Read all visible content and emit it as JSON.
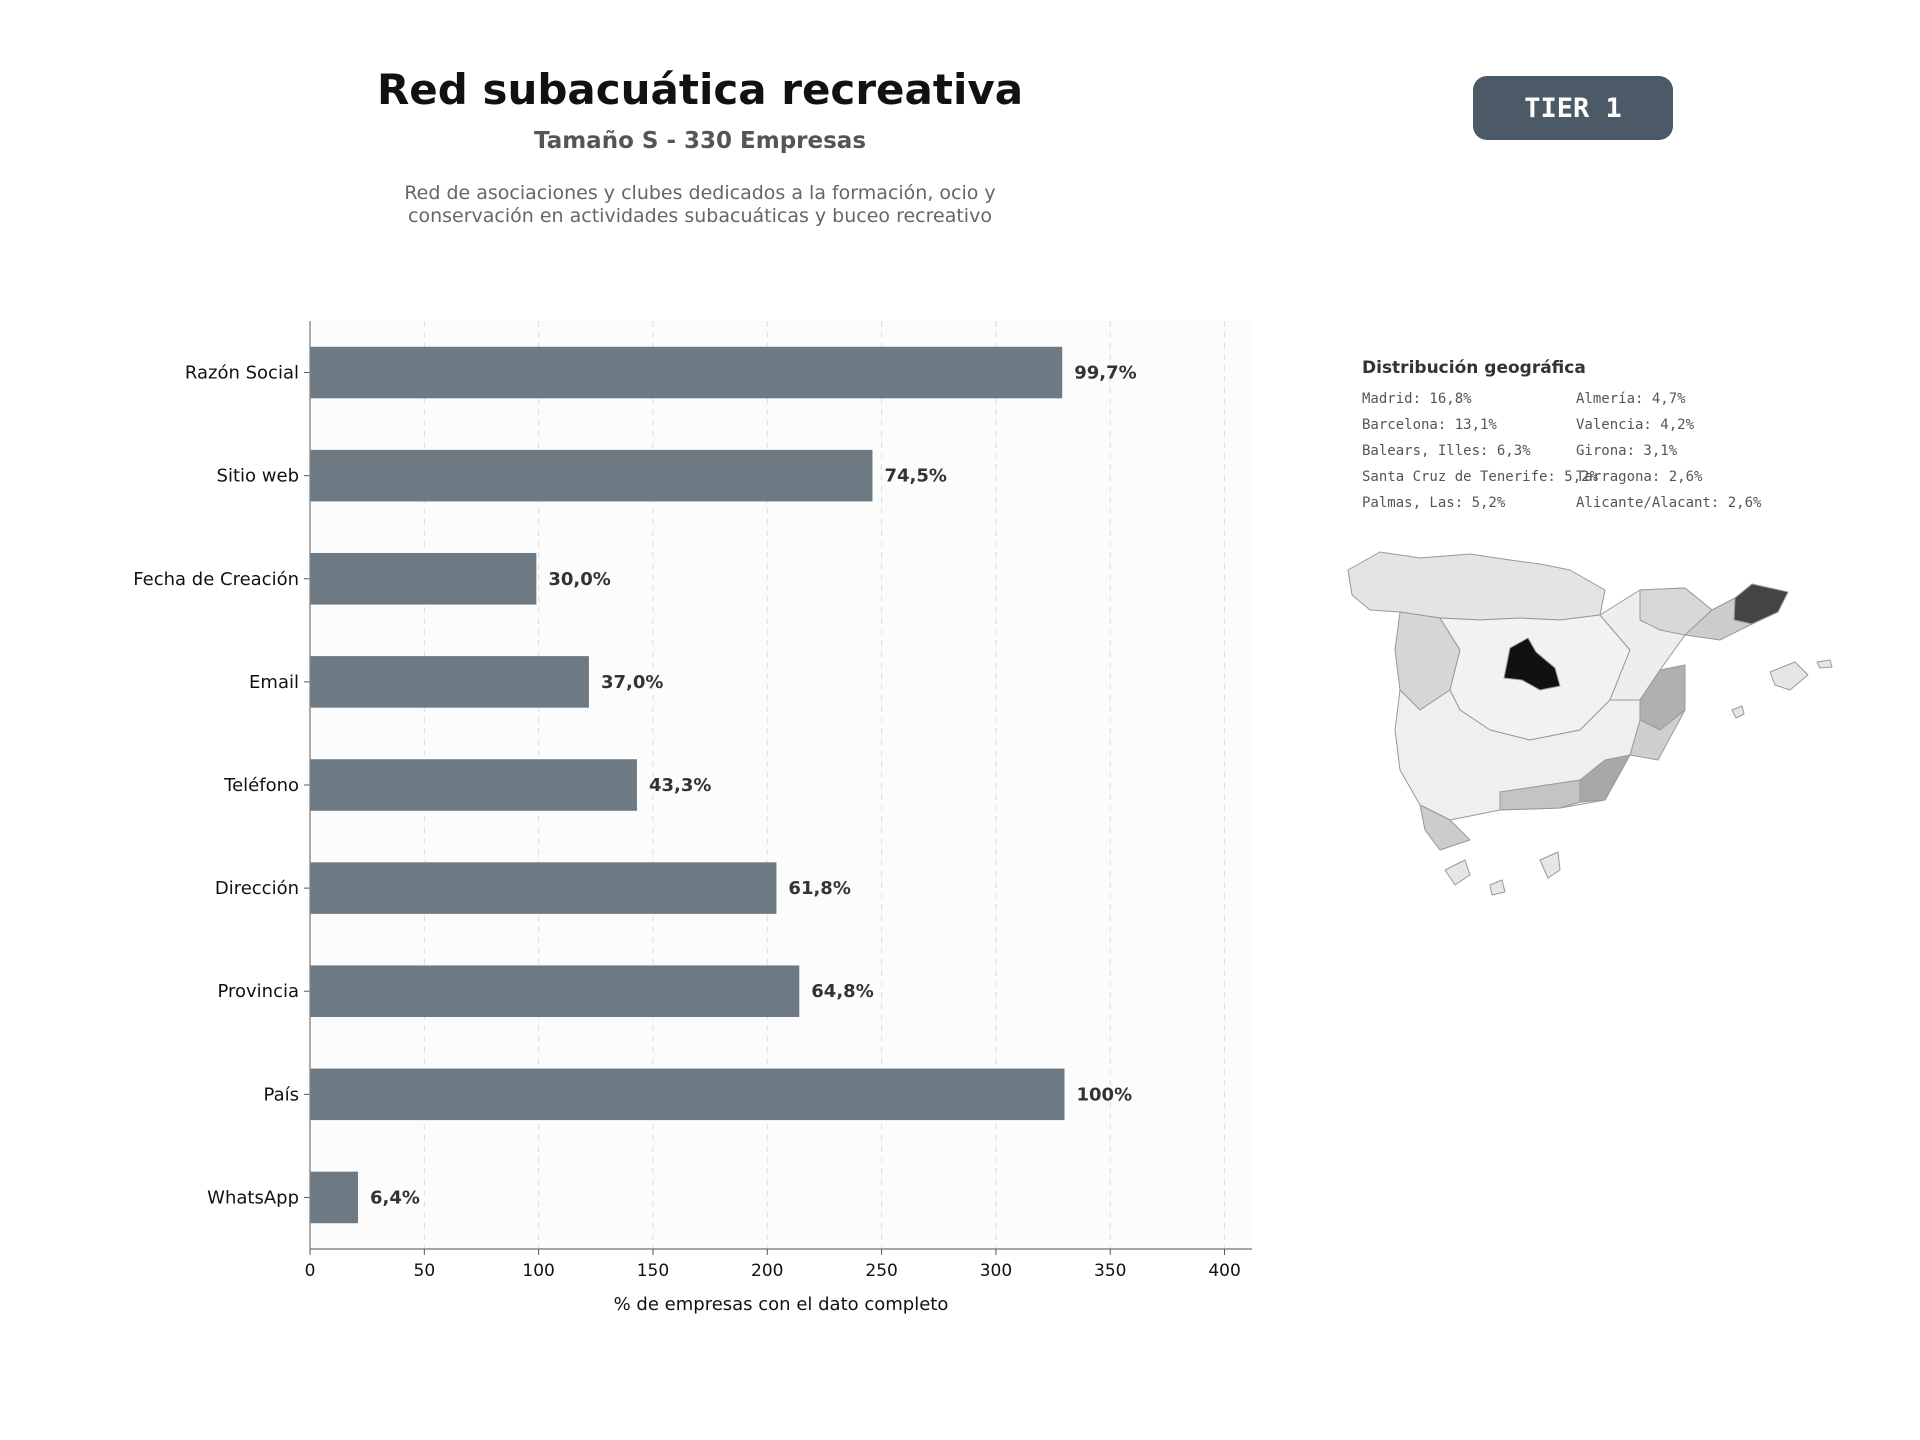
{
  "header": {
    "title": "Red subacuática recreativa",
    "subtitle": "Tamaño S - 330 Empresas",
    "description_line1": "Red de asociaciones y clubes dedicados a la formación, ocio y",
    "description_line2": "conservación en actividades subacuáticas y buceo recreativo",
    "badge": "TIER 1"
  },
  "chart_data": {
    "type": "bar",
    "orientation": "horizontal",
    "categories": [
      "Razón Social",
      "Sitio web",
      "Fecha de Creación",
      "Email",
      "Teléfono",
      "Dirección",
      "Provincia",
      "País",
      "WhatsApp"
    ],
    "values": [
      329,
      246,
      99,
      122,
      143,
      204,
      214,
      330,
      21
    ],
    "data_labels": [
      "99,7%",
      "74,5%",
      "30,0%",
      "37,0%",
      "43,3%",
      "61,8%",
      "64,8%",
      "100%",
      "6,4%"
    ],
    "xlabel": "% de empresas con el dato completo",
    "xlim": [
      0,
      412
    ],
    "xticks": [
      0,
      50,
      100,
      150,
      200,
      250,
      300,
      350,
      400
    ],
    "grid": "vertical-dashed",
    "bar_color": "#6e7a83"
  },
  "geo": {
    "title": "Distribución geográfica",
    "items": [
      "Madrid: 16,8%",
      "Almería: 4,7%",
      "Barcelona: 13,1%",
      "Valencia: 4,2%",
      "Balears, Illes: 6,3%",
      "Girona: 3,1%",
      "Santa Cruz de Tenerife: 5,2%",
      "Tarragona: 2,6%",
      "Palmas, Las: 5,2%",
      "Alicante/Alacant: 2,6%"
    ]
  },
  "map": {
    "highlight_colors": {
      "madrid": "#111111",
      "barcelona": "#444444"
    }
  }
}
